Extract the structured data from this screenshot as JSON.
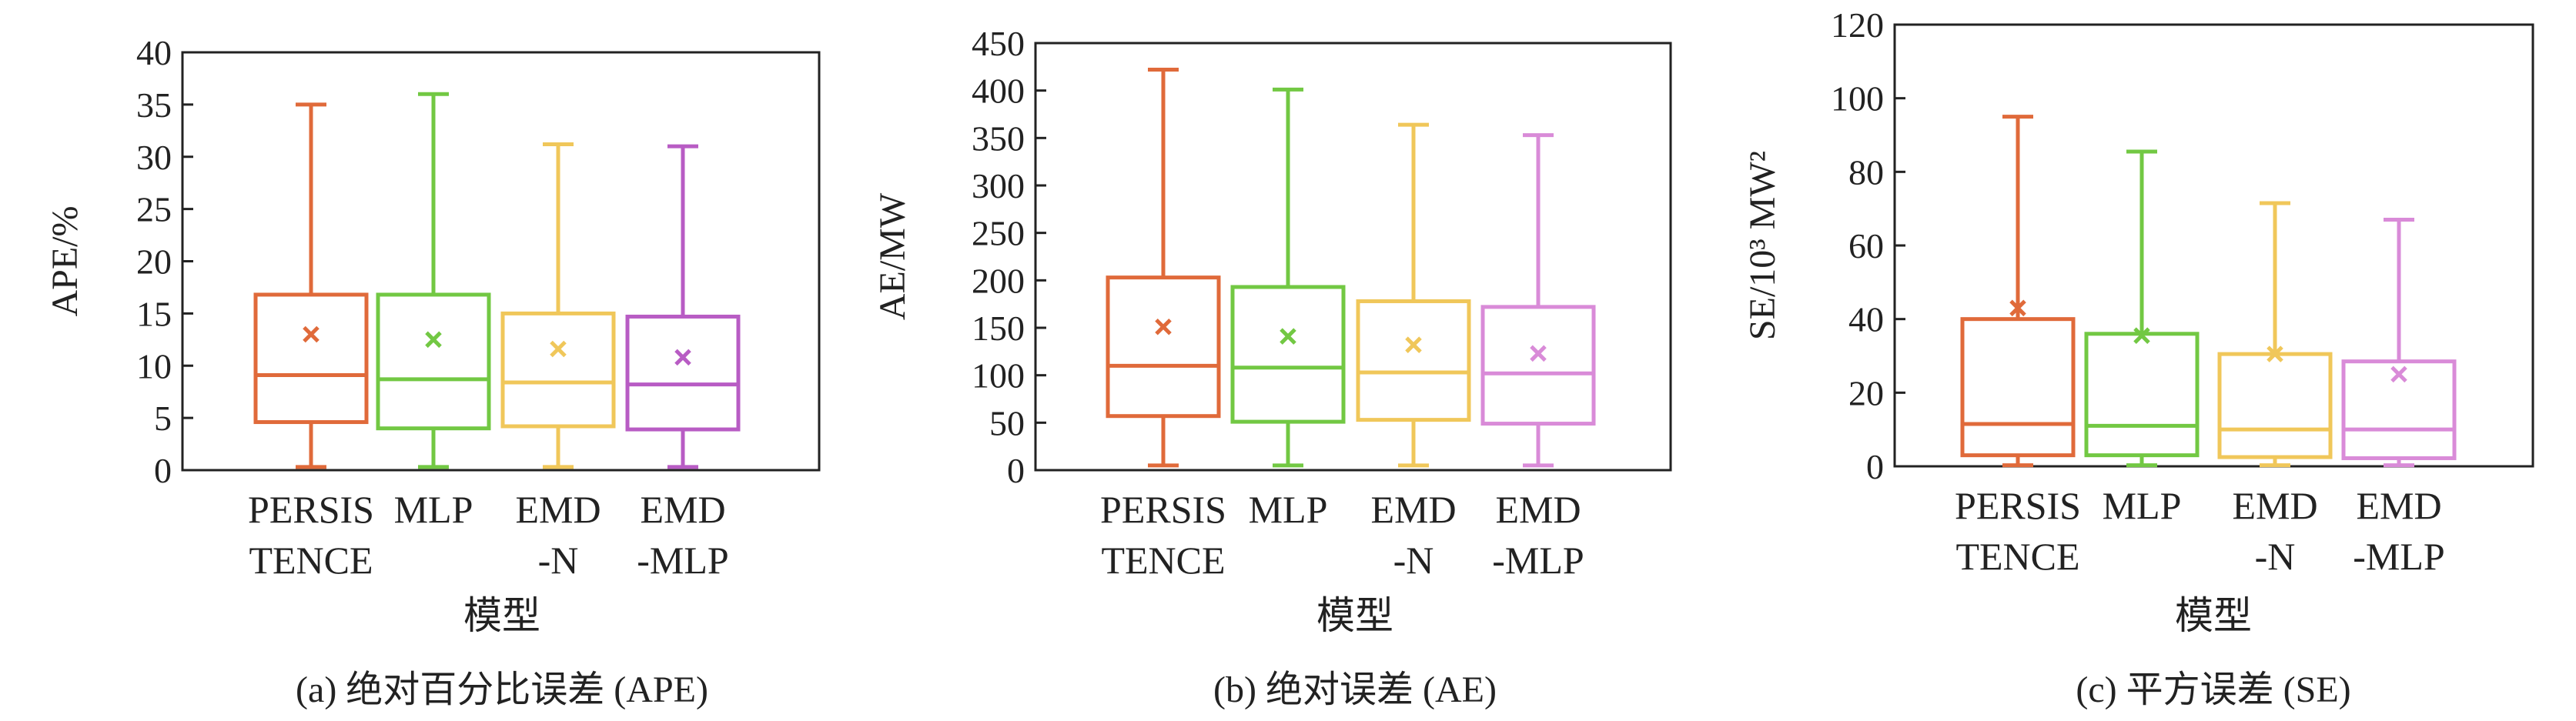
{
  "chart_data": [
    {
      "type": "box",
      "caption": "(a) 绝对百分比误差 (APE)",
      "xlabel": "模型",
      "ylabel": "APE/%",
      "ylim": [
        0,
        40
      ],
      "yticks": [
        0,
        5,
        10,
        15,
        20,
        25,
        30,
        35,
        40
      ],
      "categories": [
        {
          "line1": "PERSIS",
          "line2": "TENCE"
        },
        {
          "line1": "MLP",
          "line2": ""
        },
        {
          "line1": "EMD",
          "line2": "-N"
        },
        {
          "line1": "EMD",
          "line2": "-MLP"
        }
      ],
      "series": [
        {
          "color": "#e06a3a",
          "min": 0.3,
          "q1": 4.6,
          "median": 9.1,
          "q3": 16.8,
          "max": 35.0,
          "mean": 13.0
        },
        {
          "color": "#72c843",
          "min": 0.3,
          "q1": 4.0,
          "median": 8.7,
          "q3": 16.8,
          "max": 36.0,
          "mean": 12.5
        },
        {
          "color": "#f0c75a",
          "min": 0.3,
          "q1": 4.2,
          "median": 8.4,
          "q3": 15.0,
          "max": 31.2,
          "mean": 11.6
        },
        {
          "color": "#b85cc4",
          "min": 0.3,
          "q1": 3.9,
          "median": 8.2,
          "q3": 14.7,
          "max": 31.0,
          "mean": 10.8
        }
      ]
    },
    {
      "type": "box",
      "caption": "(b) 绝对误差 (AE)",
      "xlabel": "模型",
      "ylabel": "AE/MW",
      "ylim": [
        0,
        450
      ],
      "yticks": [
        0,
        50,
        100,
        150,
        200,
        250,
        300,
        350,
        400,
        450
      ],
      "categories": [
        {
          "line1": "PERSIS",
          "line2": "TENCE"
        },
        {
          "line1": "MLP",
          "line2": ""
        },
        {
          "line1": "EMD",
          "line2": "-N"
        },
        {
          "line1": "EMD",
          "line2": "-MLP"
        }
      ],
      "series": [
        {
          "color": "#e06a3a",
          "min": 5,
          "q1": 57,
          "median": 110,
          "q3": 203,
          "max": 422,
          "mean": 151
        },
        {
          "color": "#72c843",
          "min": 5,
          "q1": 51,
          "median": 108,
          "q3": 193,
          "max": 401,
          "mean": 141
        },
        {
          "color": "#f0c75a",
          "min": 5,
          "q1": 53,
          "median": 103,
          "q3": 178,
          "max": 364,
          "mean": 132
        },
        {
          "color": "#d98bd8",
          "min": 5,
          "q1": 49,
          "median": 102,
          "q3": 172,
          "max": 353,
          "mean": 123
        }
      ]
    },
    {
      "type": "box",
      "caption": "(c) 平方误差 (SE)",
      "xlabel": "模型",
      "ylabel": "SE/10³ MW²",
      "ylim": [
        0,
        120
      ],
      "yticks": [
        0,
        20,
        40,
        60,
        80,
        100,
        120
      ],
      "categories": [
        {
          "line1": "PERSIS",
          "line2": "TENCE"
        },
        {
          "line1": "MLP",
          "line2": ""
        },
        {
          "line1": "EMD",
          "line2": "-N"
        },
        {
          "line1": "EMD",
          "line2": "-MLP"
        }
      ],
      "series": [
        {
          "color": "#e06a3a",
          "min": 0.3,
          "q1": 3,
          "median": 11.5,
          "q3": 40,
          "max": 95,
          "mean": 43
        },
        {
          "color": "#72c843",
          "min": 0.3,
          "q1": 3,
          "median": 11,
          "q3": 36,
          "max": 85.5,
          "mean": 35.5
        },
        {
          "color": "#f0c75a",
          "min": 0.3,
          "q1": 2.5,
          "median": 10,
          "q3": 30.5,
          "max": 71.5,
          "mean": 30.5
        },
        {
          "color": "#d98bd8",
          "min": 0.3,
          "q1": 2.2,
          "median": 10,
          "q3": 28.5,
          "max": 67,
          "mean": 25
        }
      ]
    }
  ]
}
